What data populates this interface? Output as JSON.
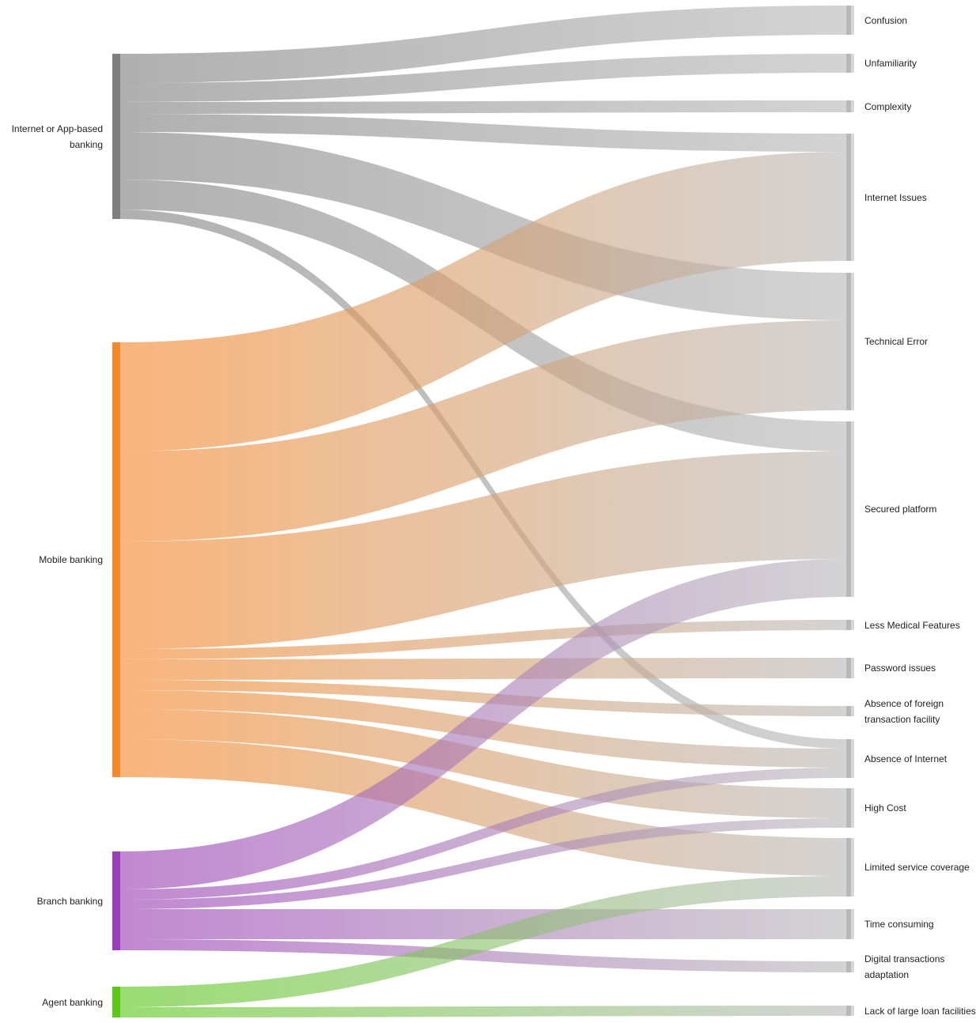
{
  "chart_data": {
    "type": "sankey",
    "nodes": [
      {
        "name": "Internet or App-based banking",
        "color": "#7f7f7f"
      },
      {
        "name": "Mobile banking",
        "color": "#f5882a"
      },
      {
        "name": "Branch banking",
        "color": "#9a3fb5"
      },
      {
        "name": "Agent banking",
        "color": "#5bc81b"
      },
      {
        "name": "Confusion",
        "color": "#b8b8b8"
      },
      {
        "name": "Unfamiliarity",
        "color": "#b8b8b8"
      },
      {
        "name": "Complexity",
        "color": "#b8b8b8"
      },
      {
        "name": "Internet Issues",
        "color": "#b8b8b8"
      },
      {
        "name": "Technical Error",
        "color": "#b8b8b8"
      },
      {
        "name": "Secured platform",
        "color": "#b8b8b8"
      },
      {
        "name": "Less Medical Features",
        "color": "#b8b8b8"
      },
      {
        "name": "Password issues",
        "color": "#b8b8b8"
      },
      {
        "name": "Absence of foreign transaction facility",
        "color": "#b8b8b8"
      },
      {
        "name": "Absence of Internet",
        "color": "#b8b8b8"
      },
      {
        "name": "High Cost",
        "color": "#b8b8b8"
      },
      {
        "name": "Limited service coverage",
        "color": "#b8b8b8"
      },
      {
        "name": "Time consuming",
        "color": "#b8b8b8"
      },
      {
        "name": "Digital transactions adaptation",
        "color": "#b8b8b8"
      },
      {
        "name": "Lack of large loan facilities",
        "color": "#b8b8b8"
      }
    ],
    "links": [
      {
        "source": 0,
        "target": 4,
        "value": 37
      },
      {
        "source": 0,
        "target": 5,
        "value": 24
      },
      {
        "source": 0,
        "target": 6,
        "value": 15
      },
      {
        "source": 0,
        "target": 7,
        "value": 23
      },
      {
        "source": 0,
        "target": 8,
        "value": 60
      },
      {
        "source": 0,
        "target": 9,
        "value": 38
      },
      {
        "source": 0,
        "target": 13,
        "value": 12
      },
      {
        "source": 1,
        "target": 7,
        "value": 138
      },
      {
        "source": 1,
        "target": 8,
        "value": 114
      },
      {
        "source": 1,
        "target": 9,
        "value": 136
      },
      {
        "source": 1,
        "target": 10,
        "value": 13
      },
      {
        "source": 1,
        "target": 11,
        "value": 26
      },
      {
        "source": 1,
        "target": 12,
        "value": 13
      },
      {
        "source": 1,
        "target": 13,
        "value": 24
      },
      {
        "source": 1,
        "target": 14,
        "value": 38
      },
      {
        "source": 1,
        "target": 15,
        "value": 48
      },
      {
        "source": 2,
        "target": 9,
        "value": 48
      },
      {
        "source": 2,
        "target": 13,
        "value": 13
      },
      {
        "source": 2,
        "target": 14,
        "value": 12
      },
      {
        "source": 2,
        "target": 16,
        "value": 38
      },
      {
        "source": 2,
        "target": 17,
        "value": 14
      },
      {
        "source": 3,
        "target": 15,
        "value": 26
      },
      {
        "source": 3,
        "target": 18,
        "value": 13
      }
    ]
  }
}
